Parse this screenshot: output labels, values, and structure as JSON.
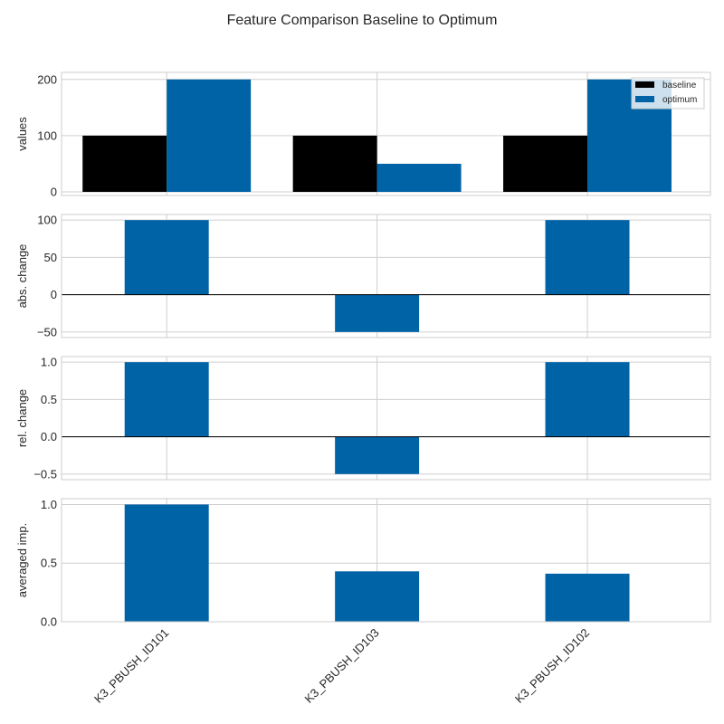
{
  "chart_data": {
    "type": "bar",
    "title": "Feature Comparison Baseline to Optimum",
    "categories": [
      "K3_PBUSH_ID101",
      "K3_PBUSH_ID103",
      "K3_PBUSH_ID102"
    ],
    "colors": {
      "baseline": "#000000",
      "optimum": "#0063a6",
      "grid": "#cfcfcf",
      "frame": "#cccccc"
    },
    "legend": {
      "placement": "top-right",
      "entries": [
        "baseline",
        "optimum"
      ]
    },
    "grid": true,
    "panels": [
      {
        "ylabel": "values",
        "ylim": [
          -6.4,
          212.5
        ],
        "yticks": [
          0,
          100,
          200
        ],
        "yticklabels": [
          "0",
          "100",
          "200"
        ],
        "series": [
          {
            "name": "baseline",
            "values": [
              100,
              100,
              100
            ]
          },
          {
            "name": "optimum",
            "values": [
              200,
              50,
              200
            ]
          }
        ]
      },
      {
        "ylabel": "abs. change",
        "ylim": [
          -57.5,
          107.5
        ],
        "yticks": [
          -50,
          0,
          50,
          100
        ],
        "yticklabels": [
          "−50",
          "0",
          "50",
          "100"
        ],
        "zero_line": true,
        "values": [
          100,
          -50,
          100
        ]
      },
      {
        "ylabel": "rel. change",
        "ylim": [
          -0.575,
          1.075
        ],
        "yticks": [
          -0.5,
          0.0,
          0.5,
          1.0
        ],
        "yticklabels": [
          "−0.5",
          "0.0",
          "0.5",
          "1.0"
        ],
        "zero_line": true,
        "values": [
          1.0,
          -0.5,
          1.0
        ]
      },
      {
        "ylabel": "averaged imp.",
        "ylim": [
          0.0,
          1.05
        ],
        "yticks": [
          0.0,
          0.5,
          1.0
        ],
        "yticklabels": [
          "0.0",
          "0.5",
          "1.0"
        ],
        "values": [
          1.0,
          0.43,
          0.41
        ]
      }
    ]
  }
}
